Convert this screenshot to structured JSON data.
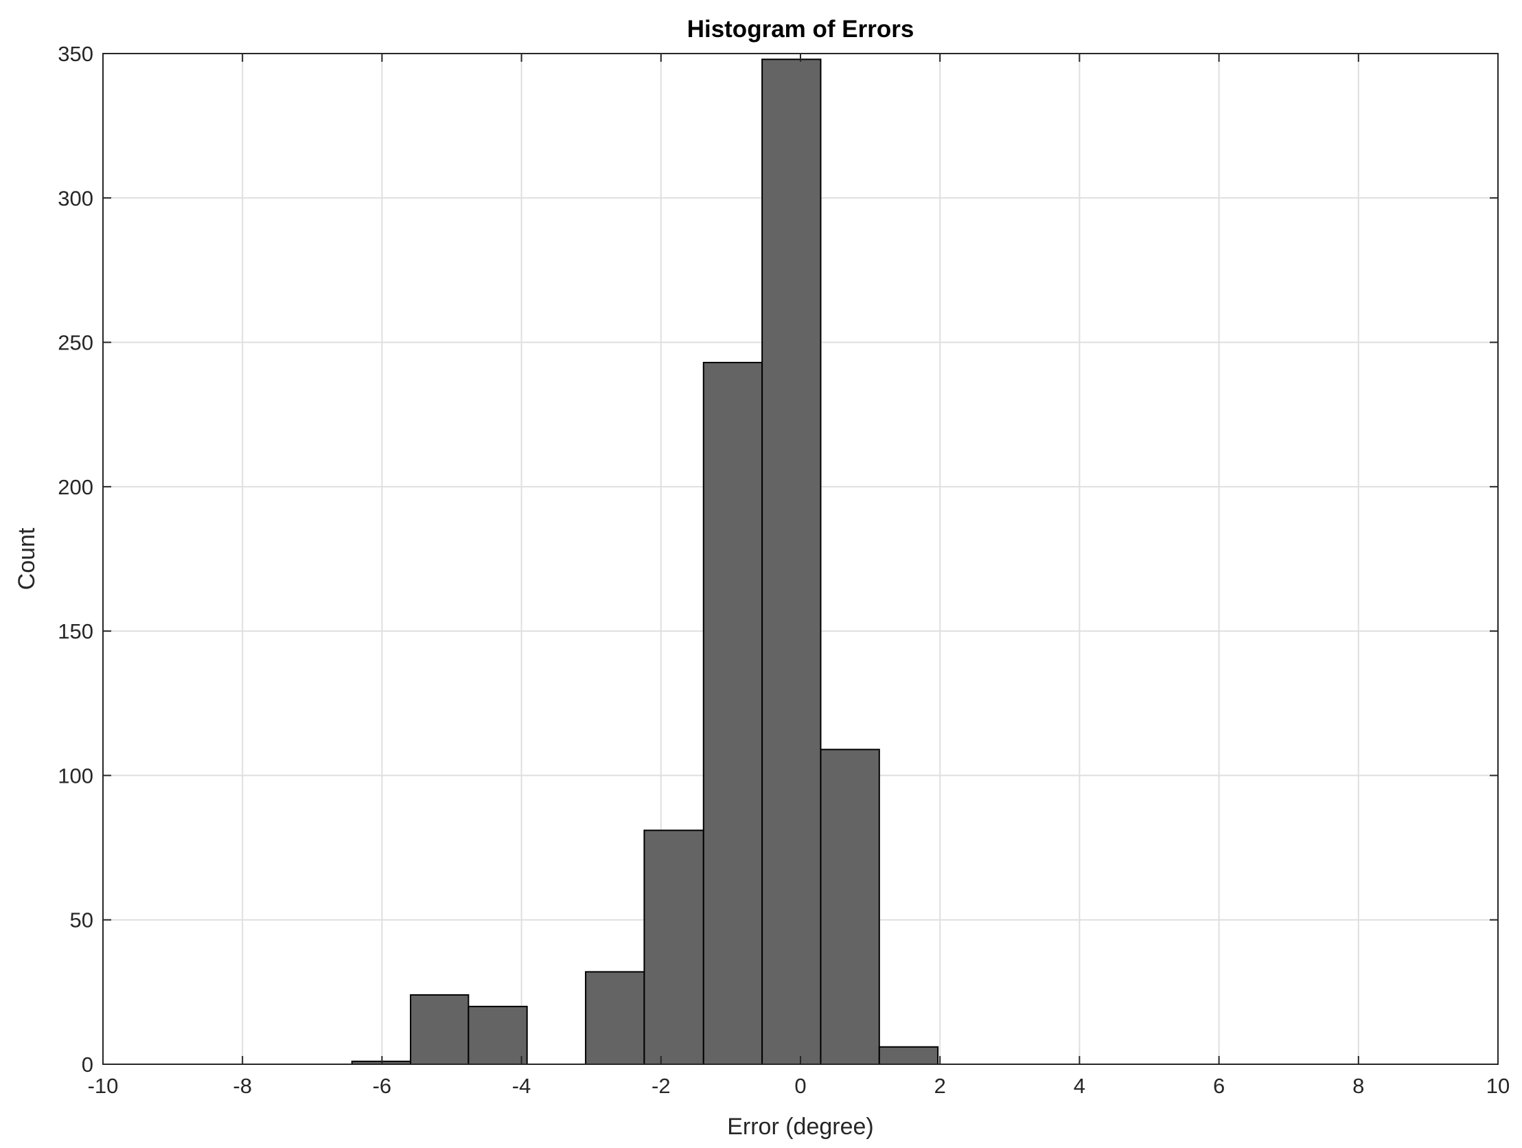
{
  "chart_data": {
    "type": "bar",
    "title": "Histogram of Errors",
    "xlabel": "Error (degree)",
    "ylabel": "Count",
    "xlim": [
      -10,
      10
    ],
    "ylim": [
      0,
      350
    ],
    "xticks": [
      -10,
      -8,
      -6,
      -4,
      -2,
      0,
      2,
      4,
      6,
      8,
      10
    ],
    "yticks": [
      0,
      50,
      100,
      150,
      200,
      250,
      300,
      350
    ],
    "grid": true,
    "bar_color": "#646464",
    "edge_color": "#000000",
    "bins": [
      {
        "x0": -6.43,
        "x1": -5.59,
        "count": 1
      },
      {
        "x0": -5.59,
        "x1": -4.76,
        "count": 24
      },
      {
        "x0": -4.76,
        "x1": -3.92,
        "count": 20
      },
      {
        "x0": -3.92,
        "x1": -3.08,
        "count": 0
      },
      {
        "x0": -3.08,
        "x1": -2.24,
        "count": 32
      },
      {
        "x0": -2.24,
        "x1": -1.39,
        "count": 81
      },
      {
        "x0": -1.39,
        "x1": -0.55,
        "count": 243
      },
      {
        "x0": -0.55,
        "x1": 0.29,
        "count": 348
      },
      {
        "x0": 0.29,
        "x1": 1.13,
        "count": 109
      },
      {
        "x0": 1.13,
        "x1": 1.97,
        "count": 6
      }
    ]
  }
}
